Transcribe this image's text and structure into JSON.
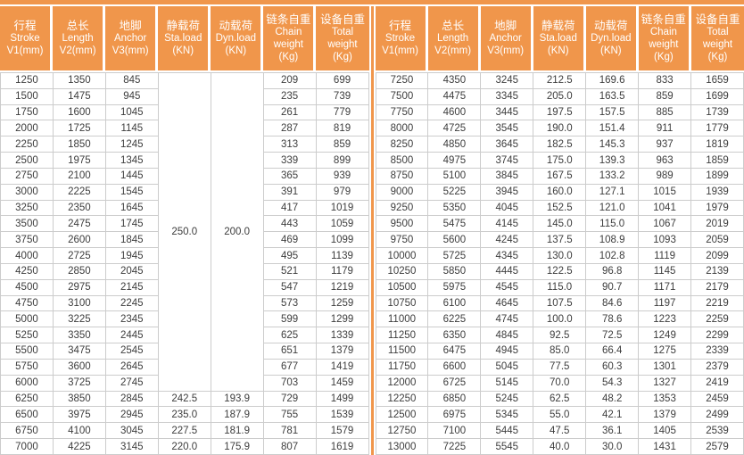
{
  "colors": {
    "accent_orange": "#F0964B",
    "grid_gray": "#CCCCCC",
    "data_text": "#3D3D3D",
    "header_text": "#FFFFFF"
  },
  "column_ids": [
    "stroke-v1",
    "length-v2",
    "anchor-v3",
    "sta-load",
    "dyn-load",
    "chain-weight",
    "total-weight"
  ],
  "column_headers": [
    [
      "行程",
      "Stroke",
      "V1(mm)"
    ],
    [
      "总长",
      "Length",
      "V2(mm)"
    ],
    [
      "地脚",
      "Anchor",
      "V3(mm)"
    ],
    [
      "静载荷",
      "Sta.load",
      "(KN)"
    ],
    [
      "动载荷",
      "Dyn.load",
      "(KN)"
    ],
    [
      "链条自重",
      "Chain",
      "weight",
      "(Kg)"
    ],
    [
      "设备自重",
      "Total",
      "weight",
      "(Kg)"
    ]
  ],
  "chart_data": [
    {
      "type": "table",
      "side": "left",
      "columns": [
        "行程 Stroke V1(mm)",
        "总长 Length V2(mm)",
        "地脚 Anchor V3(mm)",
        "静载荷 Sta.load (KN)",
        "动载荷 Dyn.load (KN)",
        "链条自重 Chain weight (Kg)",
        "设备自重 Total weight (Kg)"
      ],
      "merged_cells": {
        "sta_load": "250.0",
        "dyn_load": "200.0",
        "row_span": 20
      },
      "rows": [
        [
          "1250",
          "1350",
          "845",
          null,
          null,
          "209",
          "699"
        ],
        [
          "1500",
          "1475",
          "945",
          null,
          null,
          "235",
          "739"
        ],
        [
          "1750",
          "1600",
          "1045",
          null,
          null,
          "261",
          "779"
        ],
        [
          "2000",
          "1725",
          "1145",
          null,
          null,
          "287",
          "819"
        ],
        [
          "2250",
          "1850",
          "1245",
          null,
          null,
          "313",
          "859"
        ],
        [
          "2500",
          "1975",
          "1345",
          null,
          null,
          "339",
          "899"
        ],
        [
          "2750",
          "2100",
          "1445",
          null,
          null,
          "365",
          "939"
        ],
        [
          "3000",
          "2225",
          "1545",
          null,
          null,
          "391",
          "979"
        ],
        [
          "3250",
          "2350",
          "1645",
          null,
          null,
          "417",
          "1019"
        ],
        [
          "3500",
          "2475",
          "1745",
          null,
          null,
          "443",
          "1059"
        ],
        [
          "3750",
          "2600",
          "1845",
          null,
          null,
          "469",
          "1099"
        ],
        [
          "4000",
          "2725",
          "1945",
          null,
          null,
          "495",
          "1139"
        ],
        [
          "4250",
          "2850",
          "2045",
          null,
          null,
          "521",
          "1179"
        ],
        [
          "4500",
          "2975",
          "2145",
          null,
          null,
          "547",
          "1219"
        ],
        [
          "4750",
          "3100",
          "2245",
          null,
          null,
          "573",
          "1259"
        ],
        [
          "5000",
          "3225",
          "2345",
          null,
          null,
          "599",
          "1299"
        ],
        [
          "5250",
          "3350",
          "2445",
          null,
          null,
          "625",
          "1339"
        ],
        [
          "5500",
          "3475",
          "2545",
          null,
          null,
          "651",
          "1379"
        ],
        [
          "5750",
          "3600",
          "2645",
          null,
          null,
          "677",
          "1419"
        ],
        [
          "6000",
          "3725",
          "2745",
          null,
          null,
          "703",
          "1459"
        ],
        [
          "6250",
          "3850",
          "2845",
          "242.5",
          "193.9",
          "729",
          "1499"
        ],
        [
          "6500",
          "3975",
          "2945",
          "235.0",
          "187.9",
          "755",
          "1539"
        ],
        [
          "6750",
          "4100",
          "3045",
          "227.5",
          "181.9",
          "781",
          "1579"
        ],
        [
          "7000",
          "4225",
          "3145",
          "220.0",
          "175.9",
          "807",
          "1619"
        ]
      ]
    },
    {
      "type": "table",
      "side": "right",
      "columns": [
        "行程 Stroke V1(mm)",
        "总长 Length V2(mm)",
        "地脚 Anchor V3(mm)",
        "静载荷 Sta.load (KN)",
        "动载荷 Dyn.load (KN)",
        "链条自重 Chain weight (Kg)",
        "设备自重 Total weight (Kg)"
      ],
      "merged_cells": null,
      "rows": [
        [
          "7250",
          "4350",
          "3245",
          "212.5",
          "169.6",
          "833",
          "1659"
        ],
        [
          "7500",
          "4475",
          "3345",
          "205.0",
          "163.5",
          "859",
          "1699"
        ],
        [
          "7750",
          "4600",
          "3445",
          "197.5",
          "157.5",
          "885",
          "1739"
        ],
        [
          "8000",
          "4725",
          "3545",
          "190.0",
          "151.4",
          "911",
          "1779"
        ],
        [
          "8250",
          "4850",
          "3645",
          "182.5",
          "145.3",
          "937",
          "1819"
        ],
        [
          "8500",
          "4975",
          "3745",
          "175.0",
          "139.3",
          "963",
          "1859"
        ],
        [
          "8750",
          "5100",
          "3845",
          "167.5",
          "133.2",
          "989",
          "1899"
        ],
        [
          "9000",
          "5225",
          "3945",
          "160.0",
          "127.1",
          "1015",
          "1939"
        ],
        [
          "9250",
          "5350",
          "4045",
          "152.5",
          "121.0",
          "1041",
          "1979"
        ],
        [
          "9500",
          "5475",
          "4145",
          "145.0",
          "115.0",
          "1067",
          "2019"
        ],
        [
          "9750",
          "5600",
          "4245",
          "137.5",
          "108.9",
          "1093",
          "2059"
        ],
        [
          "10000",
          "5725",
          "4345",
          "130.0",
          "102.8",
          "1119",
          "2099"
        ],
        [
          "10250",
          "5850",
          "4445",
          "122.5",
          "96.8",
          "1145",
          "2139"
        ],
        [
          "10500",
          "5975",
          "4545",
          "115.0",
          "90.7",
          "1171",
          "2179"
        ],
        [
          "10750",
          "6100",
          "4645",
          "107.5",
          "84.6",
          "1197",
          "2219"
        ],
        [
          "11000",
          "6225",
          "4745",
          "100.0",
          "78.6",
          "1223",
          "2259"
        ],
        [
          "11250",
          "6350",
          "4845",
          "92.5",
          "72.5",
          "1249",
          "2299"
        ],
        [
          "11500",
          "6475",
          "4945",
          "85.0",
          "66.4",
          "1275",
          "2339"
        ],
        [
          "11750",
          "6600",
          "5045",
          "77.5",
          "60.3",
          "1301",
          "2379"
        ],
        [
          "12000",
          "6725",
          "5145",
          "70.0",
          "54.3",
          "1327",
          "2419"
        ],
        [
          "12250",
          "6850",
          "5245",
          "62.5",
          "48.2",
          "1353",
          "2459"
        ],
        [
          "12500",
          "6975",
          "5345",
          "55.0",
          "42.1",
          "1379",
          "2499"
        ],
        [
          "12750",
          "7100",
          "5445",
          "47.5",
          "36.1",
          "1405",
          "2539"
        ],
        [
          "13000",
          "7225",
          "5545",
          "40.0",
          "30.0",
          "1431",
          "2579"
        ]
      ]
    }
  ]
}
